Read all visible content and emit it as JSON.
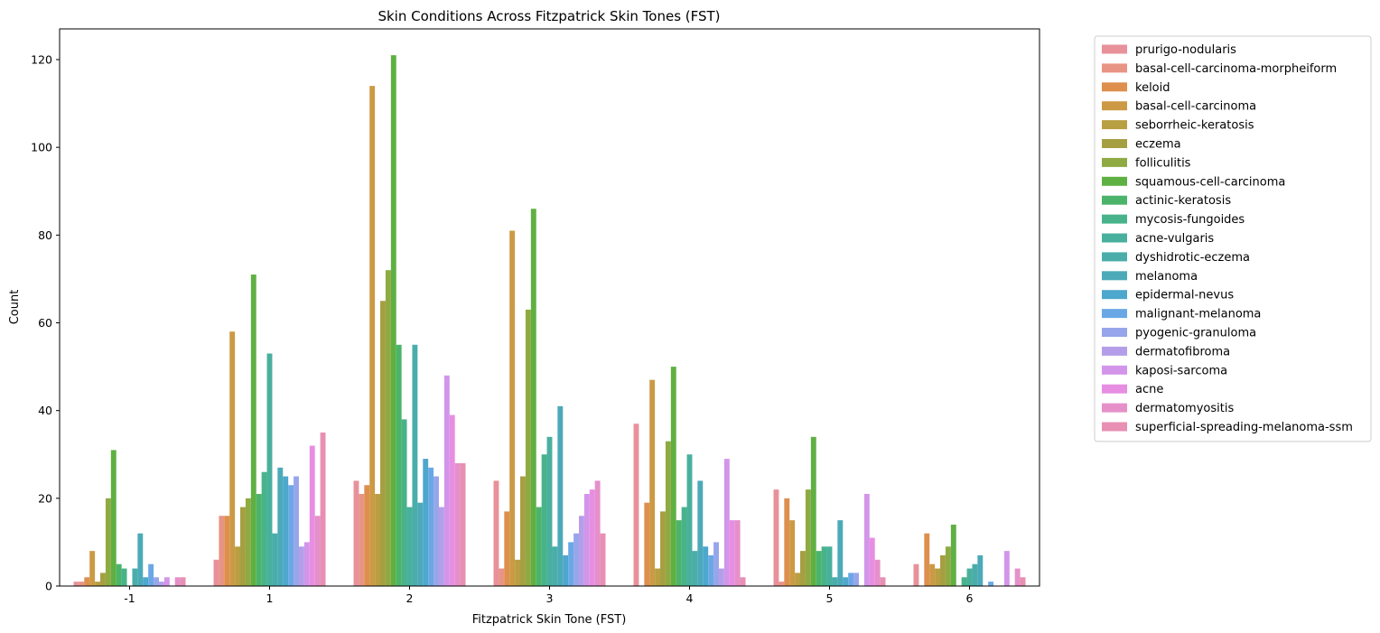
{
  "chart_data": {
    "type": "bar",
    "title": "Skin Conditions Across Fitzpatrick Skin Tones (FST)",
    "xlabel": "Fitzpatrick Skin Tone (FST)",
    "ylabel": "Count",
    "ylim": [
      0,
      127
    ],
    "yticks": [
      0,
      20,
      40,
      60,
      80,
      100,
      120
    ],
    "grid": false,
    "legend_position": "outside-right",
    "categories": [
      "-1",
      "1",
      "2",
      "3",
      "4",
      "5",
      "6"
    ],
    "series": [
      {
        "name": "prurigo-nodularis",
        "color": "#e8919b",
        "values": [
          1,
          6,
          24,
          24,
          37,
          22,
          5
        ]
      },
      {
        "name": "basal-cell-carcinoma-morpheiform",
        "color": "#e89484",
        "values": [
          1,
          16,
          21,
          4,
          0,
          1,
          0
        ]
      },
      {
        "name": "keloid",
        "color": "#de8f4e",
        "values": [
          2,
          16,
          23,
          17,
          19,
          20,
          12
        ]
      },
      {
        "name": "basal-cell-carcinoma",
        "color": "#cc9a44",
        "values": [
          8,
          58,
          114,
          81,
          47,
          15,
          5
        ]
      },
      {
        "name": "seborrheic-keratosis",
        "color": "#b89f42",
        "values": [
          1,
          9,
          21,
          6,
          4,
          3,
          4
        ]
      },
      {
        "name": "eczema",
        "color": "#a59f42",
        "values": [
          3,
          18,
          65,
          25,
          17,
          8,
          7
        ]
      },
      {
        "name": "folliculitis",
        "color": "#8faa42",
        "values": [
          20,
          20,
          72,
          63,
          33,
          22,
          9
        ]
      },
      {
        "name": "squamous-cell-carcinoma",
        "color": "#5fb043",
        "values": [
          31,
          71,
          121,
          86,
          50,
          34,
          14
        ]
      },
      {
        "name": "actinic-keratosis",
        "color": "#4cb46a",
        "values": [
          5,
          21,
          55,
          18,
          15,
          8,
          0
        ]
      },
      {
        "name": "mycosis-fungoides",
        "color": "#48b38a",
        "values": [
          4,
          26,
          38,
          30,
          18,
          9,
          2
        ]
      },
      {
        "name": "acne-vulgaris",
        "color": "#4ab09e",
        "values": [
          0,
          53,
          18,
          34,
          30,
          9,
          4
        ]
      },
      {
        "name": "dyshidrotic-eczema",
        "color": "#4aadaa",
        "values": [
          4,
          12,
          55,
          9,
          8,
          2,
          5
        ]
      },
      {
        "name": "melanoma",
        "color": "#4caab8",
        "values": [
          12,
          27,
          19,
          41,
          24,
          15,
          7
        ]
      },
      {
        "name": "epidermal-nevus",
        "color": "#4ea7cc",
        "values": [
          2,
          25,
          29,
          7,
          9,
          2,
          0
        ]
      },
      {
        "name": "malignant-melanoma",
        "color": "#6aa8e5",
        "values": [
          5,
          23,
          27,
          10,
          7,
          3,
          1
        ]
      },
      {
        "name": "pyogenic-granuloma",
        "color": "#97a6ea",
        "values": [
          2,
          25,
          25,
          12,
          10,
          3,
          0
        ]
      },
      {
        "name": "dermatofibroma",
        "color": "#b59ee9",
        "values": [
          1,
          9,
          18,
          16,
          4,
          0,
          0
        ]
      },
      {
        "name": "kaposi-sarcoma",
        "color": "#d395ea",
        "values": [
          2,
          10,
          48,
          21,
          29,
          21,
          8
        ]
      },
      {
        "name": "acne",
        "color": "#e78ee3",
        "values": [
          0,
          32,
          39,
          22,
          15,
          11,
          0
        ]
      },
      {
        "name": "dermatomyositis",
        "color": "#e690c9",
        "values": [
          2,
          16,
          28,
          24,
          15,
          6,
          4
        ]
      },
      {
        "name": "superficial-spreading-melanoma-ssm",
        "color": "#e88fb3",
        "values": [
          2,
          35,
          28,
          12,
          2,
          2,
          2
        ]
      }
    ]
  }
}
